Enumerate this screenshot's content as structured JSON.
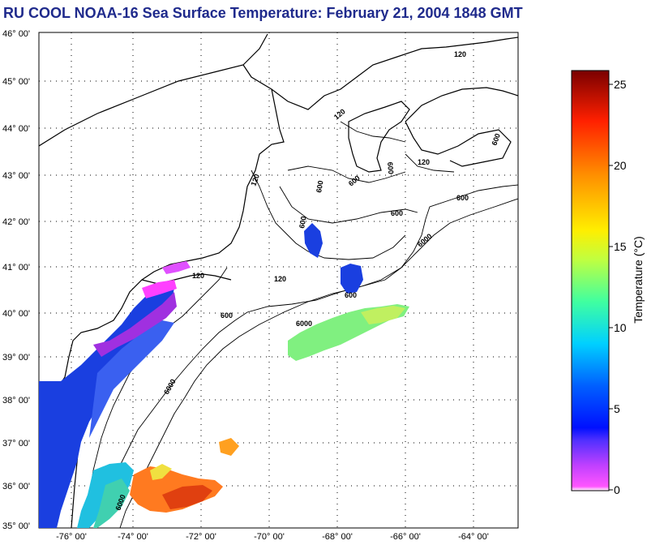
{
  "title": "RU COOL  NOAA-16  Sea Surface Temperature:  February 21, 2004 1848 GMT",
  "lat_labels": [
    "46° 00'",
    "45° 00'",
    "44° 00'",
    "43° 00'",
    "42° 00'",
    "41° 00'",
    "40° 00'",
    "39° 00'",
    "38° 00'",
    "37° 00'",
    "36° 00'",
    "35° 00'"
  ],
  "lon_labels": [
    "-76° 00'",
    "-74° 00'",
    "-72° 00'",
    "-70° 00'",
    "-68° 00'",
    "-66° 00'",
    "-64° 00'"
  ],
  "contour_labels": {
    "c1": "120",
    "c2": "120",
    "c3": "120",
    "c4": "120",
    "c5": "120",
    "c6": "120",
    "c7": "600",
    "c8": "600",
    "c9": "600",
    "c10": "600",
    "c11": "600",
    "c12": "600",
    "c13": "600",
    "c14": "600",
    "c15": "600",
    "c16": "6000",
    "c17": "6000",
    "c18": "6000",
    "c19": "6000"
  },
  "colorbar": {
    "title": "Temperature (°C)",
    "ticks": [
      "25",
      "20",
      "15",
      "10",
      "5",
      "0"
    ]
  },
  "colors": {
    "title": "#1f2a8c"
  }
}
